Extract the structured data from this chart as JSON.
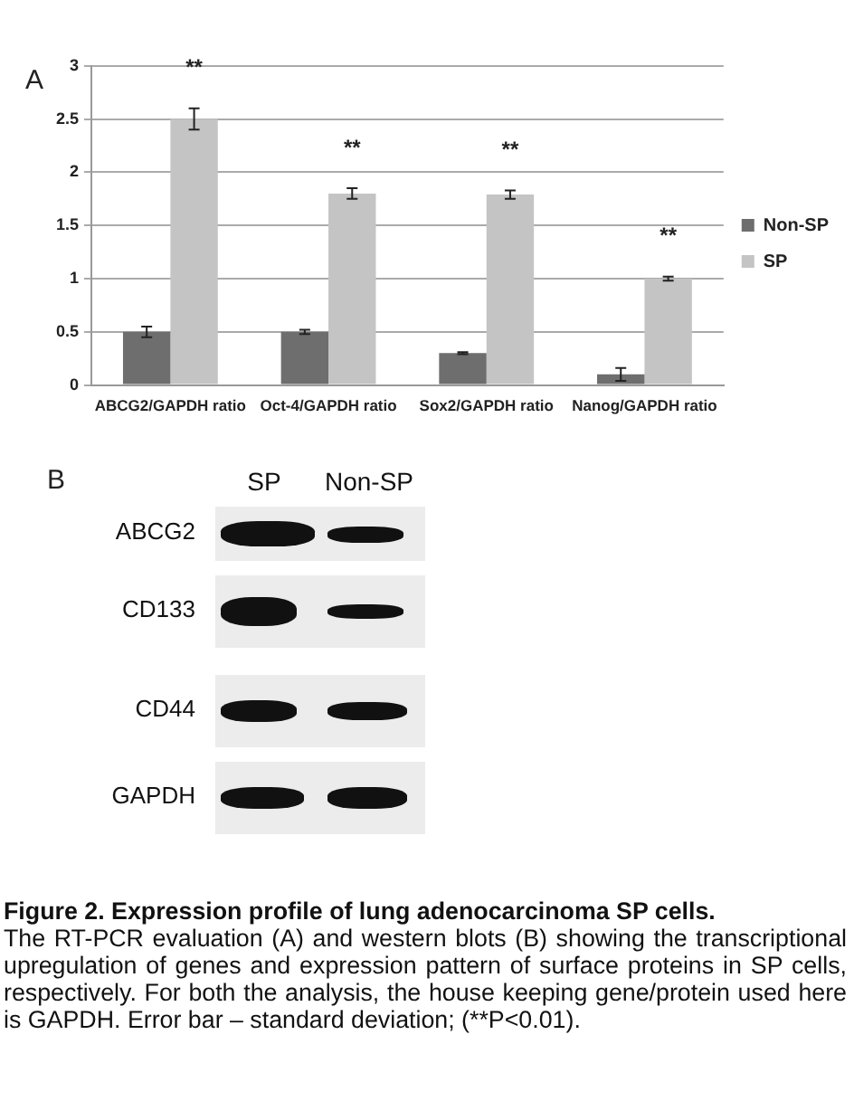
{
  "chart_data": [
    {
      "type": "bar",
      "categories": [
        "ABCG2/GAPDH ratio",
        "Oct-4/GAPDH ratio",
        "Sox2/GAPDH ratio",
        "Nanog/GAPDH ratio"
      ],
      "series": [
        {
          "name": "Non-SP",
          "color": "#6e6e6e",
          "values": [
            0.5,
            0.5,
            0.3,
            0.1
          ],
          "errors": [
            0.05,
            0.02,
            0.01,
            0.06
          ]
        },
        {
          "name": "SP",
          "color": "#c4c4c4",
          "values": [
            2.5,
            1.8,
            1.79,
            1.0
          ],
          "errors": [
            0.1,
            0.05,
            0.04,
            0.02
          ]
        }
      ],
      "ylim": [
        0,
        3
      ],
      "yticks": [
        0,
        0.5,
        1,
        1.5,
        2,
        2.5,
        3
      ],
      "grid": "y",
      "legend": "right",
      "annotations": [
        "A",
        "**",
        "**",
        "**",
        "**"
      ]
    },
    {
      "type": "other",
      "categories": [
        "SP",
        "Non-SP"
      ],
      "y_categories": [
        "ABCG2",
        "CD133",
        "CD44",
        "GAPDH"
      ],
      "annotations": [
        "B"
      ],
      "title": "Figure 2. Expression profile of lung adenocarcinoma SP cells.",
      "subtitle": "The RT-PCR evaluation (A) and western blots (B) showing the transcriptional upregulation of genes and expression pattern of surface proteins in SP cells, respectively. For both the analysis, the house keeping gene/protein used here is GAPDH. Error bar – standard deviation; (**P<0.01)."
    }
  ]
}
